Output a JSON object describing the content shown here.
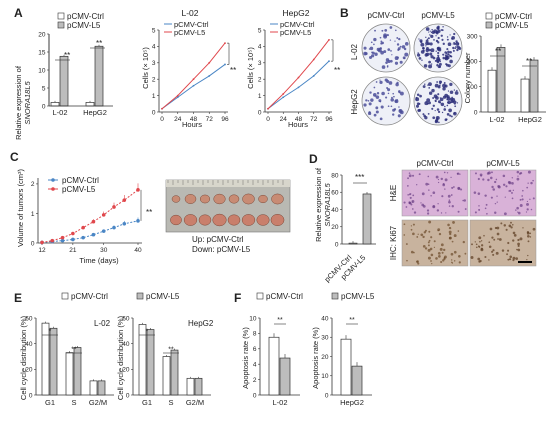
{
  "colors": {
    "ctrl": "#4a86c5",
    "l5": "#e0474c",
    "bar_ctrl": "#ffffff",
    "bar_l5": "#bdbdbd",
    "he_bg": "#d9b2d8",
    "ki_bg": "#c8b39e"
  },
  "panels": {
    "A": "A",
    "B": "B",
    "C": "C",
    "D": "D",
    "E": "E",
    "F": "F"
  },
  "legend": {
    "ctrl": "pCMV-Ctrl",
    "l5": "pCMV-L5"
  },
  "panelA": {
    "bar": {
      "ylabel1": "Relative expression of",
      "ylabel2": "SNORA18L5",
      "yticks": [
        "0",
        "5",
        "10",
        "15",
        "20"
      ],
      "sig1": "**",
      "sig2": "**"
    },
    "line1": {
      "title": "L-02",
      "xlabel": "Hours",
      "ylabel": "Cells (× 10⁵)",
      "xticks": [
        "0",
        "24",
        "48",
        "72",
        "96"
      ],
      "yticks": [
        "0",
        "1",
        "2",
        "3",
        "4",
        "5"
      ],
      "sig": "**"
    },
    "line2": {
      "title": "HepG2",
      "xlabel": "Hours",
      "ylabel": "Cells (× 10⁵)",
      "xticks": [
        "0",
        "24",
        "48",
        "72",
        "96"
      ],
      "yticks": [
        "0",
        "1",
        "2",
        "3",
        "4",
        "5"
      ],
      "sig": "**"
    }
  },
  "panelB": {
    "col1": "pCMV-Ctrl",
    "col2": "pCMV-L5",
    "row1": "L-02",
    "row2": "HepG2",
    "ylabel": "Colony number",
    "yticks": [
      "0",
      "100",
      "200",
      "300"
    ],
    "sig1": "**",
    "sig2": "**"
  },
  "panelC": {
    "xlabel": "Time (days)",
    "ylabel1": "Volume of tumors (cm³)",
    "xticks": [
      "12",
      "21",
      "30",
      "40"
    ],
    "yticks": [
      "0",
      "1",
      "2"
    ],
    "sig": "**",
    "photo_up": "Up: pCMV-Ctrl",
    "photo_down": "Down: pCMV-L5"
  },
  "panelD": {
    "ylabel1": "Relative expression of",
    "ylabel2": "SNORA18L5",
    "yticks": [
      "0",
      "20",
      "40",
      "60",
      "80"
    ],
    "xlabels": [
      "pCMV-Ctrl",
      "pCMV-L5"
    ],
    "sig": "***",
    "col1": "pCMV-Ctrl",
    "col2": "pCMV-L5",
    "row1": "H&E",
    "row2": "IHC: Ki67"
  },
  "panelE": {
    "ylabel": "Cell cycle distribution (%)",
    "yticks": [
      "0",
      "20",
      "40",
      "60"
    ],
    "left_title": "L-02",
    "right_title": "HepG2",
    "cats": [
      "G1",
      "S",
      "G2/M"
    ],
    "sig": "*",
    "sig2": "**"
  },
  "panelF": {
    "ylabel": "Apoptosis rate (%)",
    "yticks_left": [
      "0",
      "2",
      "4",
      "6",
      "8",
      "10"
    ],
    "yticks_right": [
      "0",
      "10",
      "20",
      "30",
      "40"
    ],
    "left_cat": "L-02",
    "right_cat": "HepG2",
    "sig": "**"
  },
  "chart_data": [
    {
      "type": "bar",
      "panel": "A",
      "categories": [
        "L-02",
        "HepG2"
      ],
      "series": [
        {
          "name": "pCMV-Ctrl",
          "values": [
            1,
            1
          ]
        },
        {
          "name": "pCMV-L5",
          "values": [
            13.8,
            16.6
          ]
        }
      ],
      "ylabel": "Relative expression of SNORA18L5",
      "ylim": [
        0,
        20
      ]
    },
    {
      "type": "line",
      "panel": "A",
      "title": "L-02",
      "x": [
        0,
        24,
        48,
        72,
        96
      ],
      "series": [
        {
          "name": "pCMV-Ctrl",
          "values": [
            0.2,
            0.9,
            1.6,
            2.2,
            2.9
          ]
        },
        {
          "name": "pCMV-L5",
          "values": [
            0.2,
            1.0,
            2.0,
            3.0,
            4.2
          ]
        }
      ],
      "xlabel": "Hours",
      "ylim": [
        0,
        5
      ]
    },
    {
      "type": "line",
      "panel": "A",
      "title": "HepG2",
      "x": [
        0,
        24,
        48,
        72,
        96
      ],
      "series": [
        {
          "name": "pCMV-Ctrl",
          "values": [
            0.2,
            0.9,
            1.5,
            2.2,
            3.1
          ]
        },
        {
          "name": "pCMV-L5",
          "values": [
            0.2,
            1.1,
            2.1,
            3.2,
            4.4
          ]
        }
      ],
      "xlabel": "Hours",
      "ylim": [
        0,
        5
      ]
    },
    {
      "type": "bar",
      "panel": "B",
      "categories": [
        "L-02",
        "HepG2"
      ],
      "series": [
        {
          "name": "pCMV-Ctrl",
          "values": [
            165,
            130
          ]
        },
        {
          "name": "pCMV-L5",
          "values": [
            255,
            205
          ]
        }
      ],
      "ylabel": "Colony number",
      "ylim": [
        0,
        300
      ]
    },
    {
      "type": "line",
      "panel": "C",
      "x": [
        12,
        15,
        18,
        21,
        24,
        27,
        30,
        33,
        36,
        40
      ],
      "series": [
        {
          "name": "pCMV-Ctrl",
          "values": [
            0.02,
            0.05,
            0.08,
            0.12,
            0.18,
            0.28,
            0.4,
            0.52,
            0.65,
            0.75
          ]
        },
        {
          "name": "pCMV-L5",
          "values": [
            0.02,
            0.08,
            0.18,
            0.32,
            0.52,
            0.72,
            0.95,
            1.22,
            1.45,
            1.8
          ]
        }
      ],
      "xlabel": "Time (days)",
      "ylim": [
        0,
        2.2
      ]
    },
    {
      "type": "bar",
      "panel": "D",
      "categories": [
        "pCMV-Ctrl",
        "pCMV-L5"
      ],
      "values": [
        1,
        58
      ],
      "ylabel": "Relative expression of SNORA18L5",
      "ylim": [
        0,
        80
      ]
    },
    {
      "type": "bar",
      "panel": "E",
      "title": "L-02",
      "categories": [
        "G1",
        "S",
        "G2/M"
      ],
      "series": [
        {
          "name": "pCMV-Ctrl",
          "values": [
            56,
            33,
            11
          ]
        },
        {
          "name": "pCMV-L5",
          "values": [
            52,
            37,
            11
          ]
        }
      ],
      "ylim": [
        0,
        60
      ]
    },
    {
      "type": "bar",
      "panel": "E",
      "title": "HepG2",
      "categories": [
        "G1",
        "S",
        "G2/M"
      ],
      "series": [
        {
          "name": "pCMV-Ctrl",
          "values": [
            55,
            30,
            13
          ]
        },
        {
          "name": "pCMV-L5",
          "values": [
            51,
            35,
            13
          ]
        }
      ],
      "ylim": [
        0,
        60
      ]
    },
    {
      "type": "bar",
      "panel": "F",
      "categories": [
        "L-02"
      ],
      "series": [
        {
          "name": "pCMV-Ctrl",
          "values": [
            7.5
          ]
        },
        {
          "name": "pCMV-L5",
          "values": [
            4.8
          ]
        }
      ],
      "ylabel": "Apoptosis rate (%)",
      "ylim": [
        0,
        10
      ]
    },
    {
      "type": "bar",
      "panel": "F",
      "categories": [
        "HepG2"
      ],
      "series": [
        {
          "name": "pCMV-Ctrl",
          "values": [
            29
          ]
        },
        {
          "name": "pCMV-L5",
          "values": [
            15
          ]
        }
      ],
      "ylabel": "Apoptosis rate (%)",
      "ylim": [
        0,
        40
      ]
    }
  ]
}
